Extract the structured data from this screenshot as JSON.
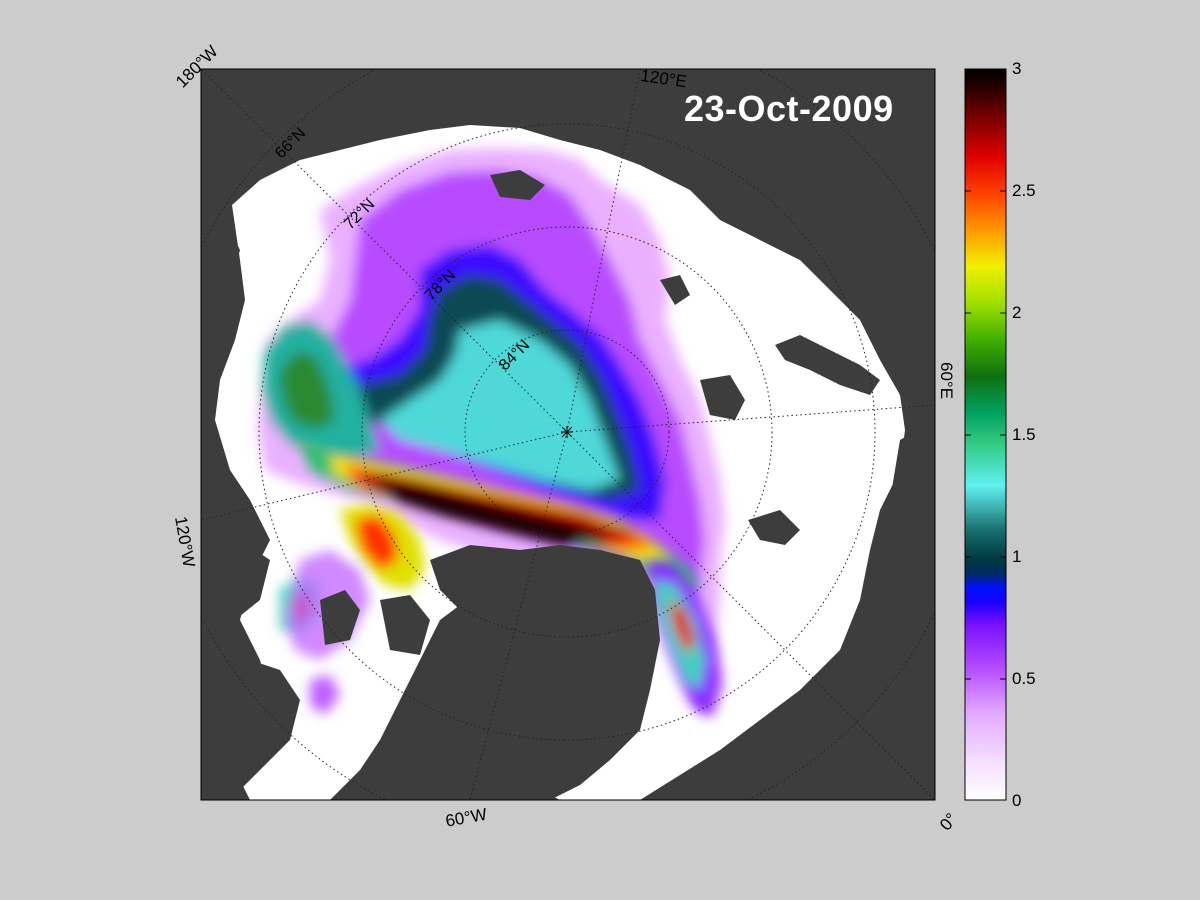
{
  "map": {
    "date": "23-Oct-2009",
    "longitude_labels": [
      "180°W",
      "120°E",
      "60°E",
      "0°",
      "60°W",
      "120°W"
    ],
    "latitude_labels": [
      "66°N",
      "72°N",
      "78°N",
      "84°N"
    ],
    "pole_marker": "*"
  },
  "colorbar": {
    "min": 0,
    "max": 3,
    "tick_labels": [
      "3",
      "2.5",
      "2",
      "1.5",
      "1",
      "0.5",
      "0"
    ]
  },
  "colors": {
    "background": "#cccccc",
    "land": "#3d3d3d",
    "ocean_open": "#ffffff",
    "colormap": [
      "#ffffff",
      "#f0c0ff",
      "#c060ff",
      "#9a2cff",
      "#3a00ff",
      "#0030ff",
      "#003a40",
      "#1a7a7a",
      "#4fe0e0",
      "#30c070",
      "#2a8a20",
      "#80d000",
      "#e0e000",
      "#ff9000",
      "#ff3000",
      "#c00000",
      "#400000",
      "#000000"
    ]
  }
}
